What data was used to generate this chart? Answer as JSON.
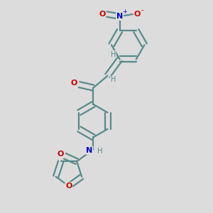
{
  "background_color": "#dcdcdc",
  "bond_color": "#5a8a8a",
  "atom_colors": {
    "O": "#cc0000",
    "N": "#0000cc",
    "H": "#5a8a8a"
  },
  "bond_lw": 1.6,
  "ring_r": 0.072,
  "fig_size": [
    3.0,
    3.0
  ],
  "dpi": 100
}
